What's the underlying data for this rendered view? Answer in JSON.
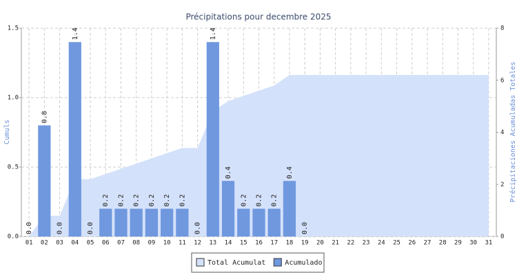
{
  "chart_data": {
    "type": "bar",
    "title": "Précipitations pour decembre 2025",
    "ylabel": "Cumuls",
    "y2label": "Précipitaciones Acumuladas Totales",
    "categories": [
      "01",
      "02",
      "03",
      "04",
      "05",
      "06",
      "07",
      "08",
      "09",
      "10",
      "11",
      "12",
      "13",
      "14",
      "15",
      "16",
      "17",
      "18",
      "19",
      "20",
      "21",
      "22",
      "23",
      "24",
      "25",
      "26",
      "27",
      "28",
      "29",
      "30",
      "31"
    ],
    "series": [
      {
        "name": "Total Acumulat",
        "type": "area",
        "axis": "y2",
        "color": "#d4e1fa",
        "values": [
          0,
          0.8,
          0.8,
          2.2,
          2.2,
          2.4,
          2.6,
          2.8,
          3.0,
          3.2,
          3.4,
          3.4,
          4.8,
          5.2,
          5.4,
          5.6,
          5.8,
          6.2,
          6.2,
          6.2,
          6.2,
          6.2,
          6.2,
          6.2,
          6.2,
          6.2,
          6.2,
          6.2,
          6.2,
          6.2,
          6.2
        ]
      },
      {
        "name": "Acumulado",
        "type": "bar",
        "color": "#6f98df",
        "values": [
          0,
          0.8,
          0,
          1.4,
          0,
          0.2,
          0.2,
          0.2,
          0.2,
          0.2,
          0.2,
          0,
          1.4,
          0.4,
          0.2,
          0.2,
          0.2,
          0.4,
          0,
          null,
          null,
          null,
          null,
          null,
          null,
          null,
          null,
          null,
          null,
          null,
          null
        ],
        "value_labels": [
          "0.0",
          "0.8",
          "0.0",
          "1.4",
          "0.0",
          "0.2",
          "0.2",
          "0.2",
          "0.2",
          "0.2",
          "0.2",
          "0.0",
          "1.4",
          "0.4",
          "0.2",
          "0.2",
          "0.2",
          "0.4",
          "0.0",
          null,
          null,
          null,
          null,
          null,
          null,
          null,
          null,
          null,
          null,
          null,
          null
        ]
      }
    ],
    "ylim": [
      0,
      1.5
    ],
    "yticks": [
      {
        "value": 0,
        "label": "0.0"
      },
      {
        "value": 0.5,
        "label": "0.5"
      },
      {
        "value": 1,
        "label": "1.0"
      },
      {
        "value": 1.5,
        "label": "1.5"
      }
    ],
    "y2lim": [
      0,
      8
    ],
    "y2ticks": [
      0,
      2,
      4,
      6,
      8
    ],
    "grid": true,
    "legend": "bottom"
  }
}
